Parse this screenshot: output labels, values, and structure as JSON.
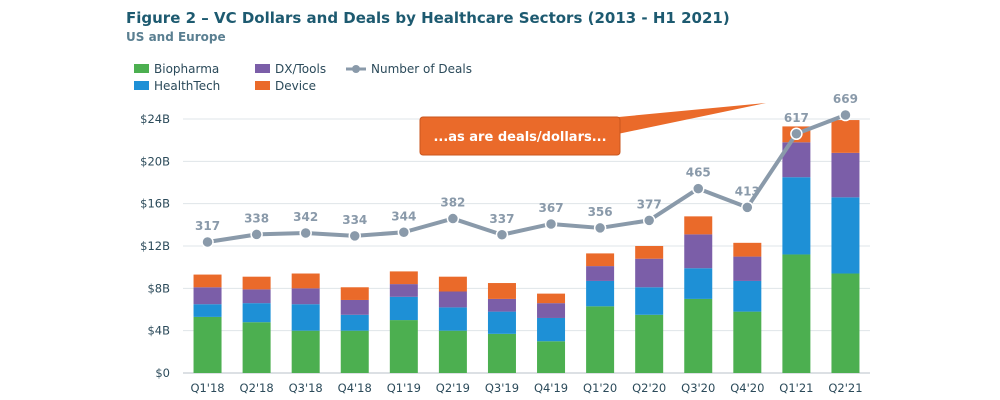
{
  "chart_data": {
    "type": "bar",
    "stacked": true,
    "title": "Figure 2 – VC Dollars and Deals by Healthcare Sectors (2013 - H1 2021)",
    "subtitle": "US and Europe",
    "categories": [
      "Q1'18",
      "Q2'18",
      "Q3'18",
      "Q4'18",
      "Q1'19",
      "Q2'19",
      "Q3'19",
      "Q4'19",
      "Q1'20",
      "Q2'20",
      "Q3'20",
      "Q4'20",
      "Q1'21",
      "Q2'21"
    ],
    "ylim": [
      0,
      24
    ],
    "yticks": [
      "$0",
      "$4B",
      "$8B",
      "$12B",
      "$16B",
      "$20B",
      "$24B"
    ],
    "grid": true,
    "legend_position": "top-left",
    "series": [
      {
        "name": "Biopharma",
        "color": "#4caf50",
        "values": [
          5.3,
          4.8,
          4.0,
          4.0,
          5.0,
          4.0,
          3.7,
          3.0,
          6.3,
          5.5,
          7.0,
          5.8,
          11.2,
          9.4
        ]
      },
      {
        "name": "HealthTech",
        "color": "#1e90d6",
        "values": [
          1.2,
          1.8,
          2.5,
          1.5,
          2.2,
          2.2,
          2.1,
          2.2,
          2.4,
          2.6,
          2.9,
          2.9,
          7.3,
          7.2
        ]
      },
      {
        "name": "DX/Tools",
        "color": "#7b5ea8",
        "values": [
          1.6,
          1.3,
          1.5,
          1.4,
          1.2,
          1.5,
          1.2,
          1.4,
          1.4,
          2.7,
          3.2,
          2.3,
          3.3,
          4.2
        ]
      },
      {
        "name": "Device",
        "color": "#ea6a2a",
        "values": [
          1.2,
          1.2,
          1.4,
          1.2,
          1.2,
          1.4,
          1.5,
          0.9,
          1.2,
          1.2,
          1.7,
          1.3,
          1.5,
          3.1
        ]
      }
    ],
    "line_series": {
      "name": "Number of Deals",
      "color": "#8a9aaa",
      "values": [
        317,
        338,
        342,
        334,
        344,
        382,
        337,
        367,
        356,
        377,
        465,
        413,
        617,
        669
      ]
    },
    "annotation": "...as are deals/dollars..."
  }
}
